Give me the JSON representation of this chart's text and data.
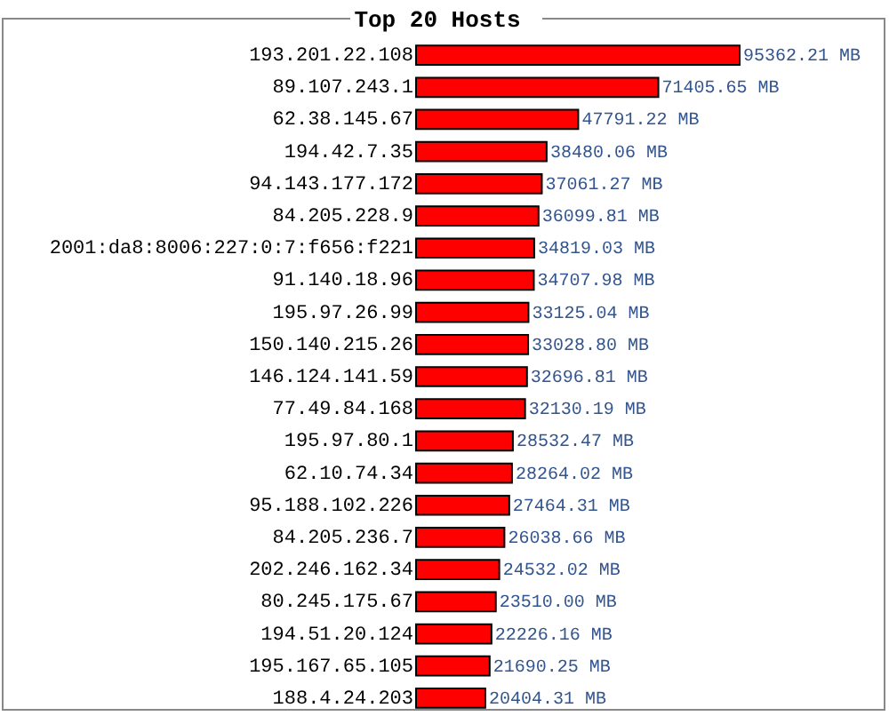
{
  "chart_data": {
    "type": "bar",
    "orientation": "horizontal",
    "title": "Top 20 Hosts",
    "color": "#ff0000",
    "categories": [
      "193.201.22.108",
      "89.107.243.1",
      "62.38.145.67",
      "194.42.7.35",
      "94.143.177.172",
      "84.205.228.9",
      "2001:da8:8006:227:0:7:f656:f221",
      "91.140.18.96",
      "195.97.26.99",
      "150.140.215.26",
      "146.124.141.59",
      "77.49.84.168",
      "195.97.80.1",
      "62.10.74.34",
      "95.188.102.226",
      "84.205.236.7",
      "202.246.162.34",
      "80.245.175.67",
      "194.51.20.124",
      "195.167.65.105",
      "188.4.24.203"
    ],
    "values": [
      95362.21,
      71405.65,
      47791.22,
      38480.06,
      37061.27,
      36099.81,
      34819.03,
      34707.98,
      33125.04,
      33028.8,
      32696.81,
      32130.19,
      28532.47,
      28264.02,
      27464.31,
      26038.66,
      24532.02,
      23510.0,
      22226.16,
      21690.25,
      20404.31
    ],
    "value_labels": [
      "95362.21 MB",
      "71405.65 MB",
      "47791.22 MB",
      "38480.06 MB",
      "37061.27 MB",
      "36099.81 MB",
      "34819.03 MB",
      "34707.98 MB",
      "33125.04 MB",
      "33028.80 MB",
      "32696.81 MB",
      "32130.19 MB",
      "28532.47 MB",
      "28264.02 MB",
      "27464.31 MB",
      "26038.66 MB",
      "24532.02 MB",
      "23510.00 MB",
      "22226.16 MB",
      "21690.25 MB",
      "20404.31 MB"
    ]
  }
}
